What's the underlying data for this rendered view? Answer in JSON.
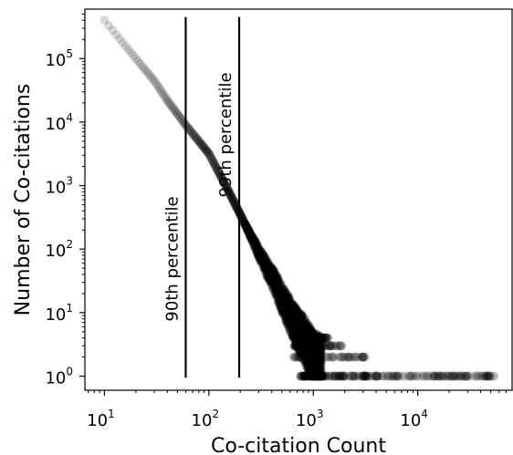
{
  "chart_data": {
    "type": "scatter",
    "title": "",
    "xlabel": "Co-citation Count",
    "ylabel": "Number of Co-citations",
    "xscale": "log",
    "yscale": "log",
    "xlim": [
      6.5,
      80000
    ],
    "ylim": [
      0.6,
      600000
    ],
    "grid": false,
    "marker_color": "#000000",
    "marker_alpha": 0.15,
    "x_ticks": [
      {
        "base": "10",
        "exp": "1",
        "value": 10
      },
      {
        "base": "10",
        "exp": "2",
        "value": 100
      },
      {
        "base": "10",
        "exp": "3",
        "value": 1000
      },
      {
        "base": "10",
        "exp": "4",
        "value": 10000
      }
    ],
    "y_ticks": [
      {
        "base": "10",
        "exp": "0",
        "value": 1
      },
      {
        "base": "10",
        "exp": "1",
        "value": 10
      },
      {
        "base": "10",
        "exp": "2",
        "value": 100
      },
      {
        "base": "10",
        "exp": "3",
        "value": 1000
      },
      {
        "base": "10",
        "exp": "4",
        "value": 10000
      },
      {
        "base": "10",
        "exp": "5",
        "value": 100000
      }
    ],
    "reference_lines": [
      {
        "label": "90th percentile",
        "x": 60,
        "y_range": [
          0.95,
          450000
        ]
      },
      {
        "label": "99th percentile",
        "x": 195,
        "y_range": [
          0.95,
          450000
        ]
      }
    ],
    "curve": [
      {
        "x": 10,
        "y": 400000
      },
      {
        "x": 20,
        "y": 100000
      },
      {
        "x": 30,
        "y": 45000
      },
      {
        "x": 40,
        "y": 22000
      },
      {
        "x": 60,
        "y": 9000
      },
      {
        "x": 100,
        "y": 3200
      },
      {
        "x": 150,
        "y": 900
      },
      {
        "x": 200,
        "y": 350
      },
      {
        "x": 300,
        "y": 90
      },
      {
        "x": 450,
        "y": 25
      },
      {
        "x": 600,
        "y": 9
      },
      {
        "x": 800,
        "y": 4
      },
      {
        "x": 1000,
        "y": 2
      },
      {
        "x": 1200,
        "y": 1.5
      }
    ],
    "tail_levels": [
      {
        "y": 4,
        "x_min": 650,
        "x_max": 1400
      },
      {
        "y": 3,
        "x_min": 650,
        "x_max": 1900
      },
      {
        "y": 2,
        "x_min": 650,
        "x_max": 3200
      },
      {
        "y": 1,
        "x_min": 750,
        "x_max": 55000
      }
    ]
  }
}
